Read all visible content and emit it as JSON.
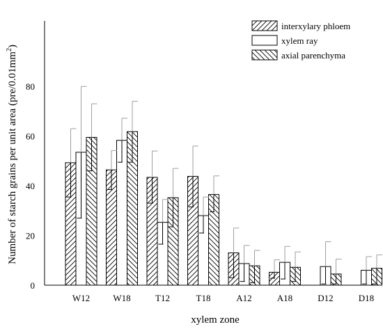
{
  "chart_data": {
    "type": "bar",
    "xlabel": "xylem zone",
    "ylabel": "Number of starch grains per unit area (pre/0.01mm",
    "ylabel_superscript": "2",
    "ylabel_close": ")",
    "ylim": [
      0,
      100
    ],
    "yticks": [
      0,
      20,
      40,
      60,
      80
    ],
    "grid": false,
    "legend_position": "top-right",
    "categories": [
      "W12",
      "W18",
      "T12",
      "T18",
      "A12",
      "A18",
      "D12",
      "D18"
    ],
    "series": [
      {
        "name": "interxylary phloem",
        "pattern": "hatch-up",
        "values": [
          49.3,
          46.4,
          43.4,
          43.8,
          13.0,
          5.2,
          0,
          0
        ],
        "error_lower": [
          35.5,
          38.5,
          33.0,
          31.5,
          3.0,
          2.8,
          0,
          0
        ],
        "error_upper": [
          63.0,
          54.2,
          54.0,
          56.0,
          23.0,
          10.2,
          0,
          0
        ]
      },
      {
        "name": "xylem ray",
        "pattern": "none",
        "values": [
          53.5,
          58.3,
          25.3,
          28.0,
          8.7,
          9.2,
          7.5,
          6.0
        ],
        "error_lower": [
          27.0,
          49.5,
          16.5,
          21.0,
          1.5,
          2.5,
          0.5,
          0.5
        ],
        "error_upper": [
          80.0,
          67.2,
          34.5,
          35.5,
          16.0,
          15.6,
          17.5,
          11.5
        ]
      },
      {
        "name": "axial parenchyma",
        "pattern": "hatch-down",
        "values": [
          59.5,
          61.8,
          35.2,
          36.5,
          7.8,
          7.2,
          4.5,
          6.8
        ],
        "error_lower": [
          46.0,
          49.5,
          23.5,
          29.5,
          1.0,
          1.5,
          0.5,
          0.5
        ],
        "error_upper": [
          73.0,
          74.0,
          47.0,
          44.0,
          14.0,
          13.4,
          10.5,
          12.2
        ]
      }
    ]
  },
  "colors": {
    "bar_fill": "#ffffff",
    "bar_stroke": "#000000",
    "hatch": "#000000",
    "error_bar": "#9e9e9e",
    "error_bar_dark": "#000000",
    "axis": "#000000"
  }
}
